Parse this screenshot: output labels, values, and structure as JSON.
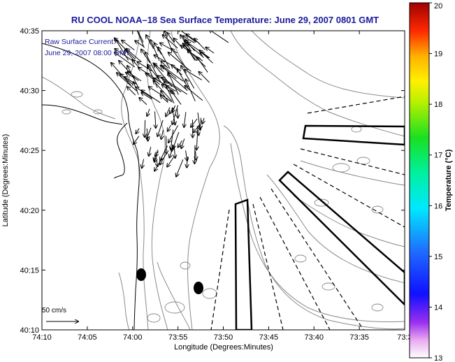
{
  "title": "RU COOL   NOAA–18  Sea Surface Temperature:  June 29, 2007 0801 GMT",
  "annotation": {
    "line1": "Raw Surface Current:",
    "line2": "June 29, 2007 08:00 GMT"
  },
  "scale_label": "50 cm/s",
  "axes": {
    "xlabel": "Longitude (Degrees:Minutes)",
    "ylabel": "Latitude (Degrees:Minutes)",
    "xticks": [
      "74:10",
      "74:05",
      "74:00",
      "73:55",
      "73:50",
      "73:45",
      "73:40",
      "73:35",
      "73:3"
    ],
    "yticks": [
      "40:10",
      "40:15",
      "40:20",
      "40:25",
      "40:30",
      "40:35"
    ]
  },
  "colorbar": {
    "label": "Temperature (°C)",
    "ticks": [
      "13",
      "14",
      "15",
      "16",
      "17",
      "18",
      "19",
      "20"
    ],
    "min": 13,
    "max": 20
  },
  "colors": {
    "title": "#1a1a9a",
    "coast": "#000000",
    "bathymetry": "#8a8a8a",
    "vectors": "#000000"
  }
}
